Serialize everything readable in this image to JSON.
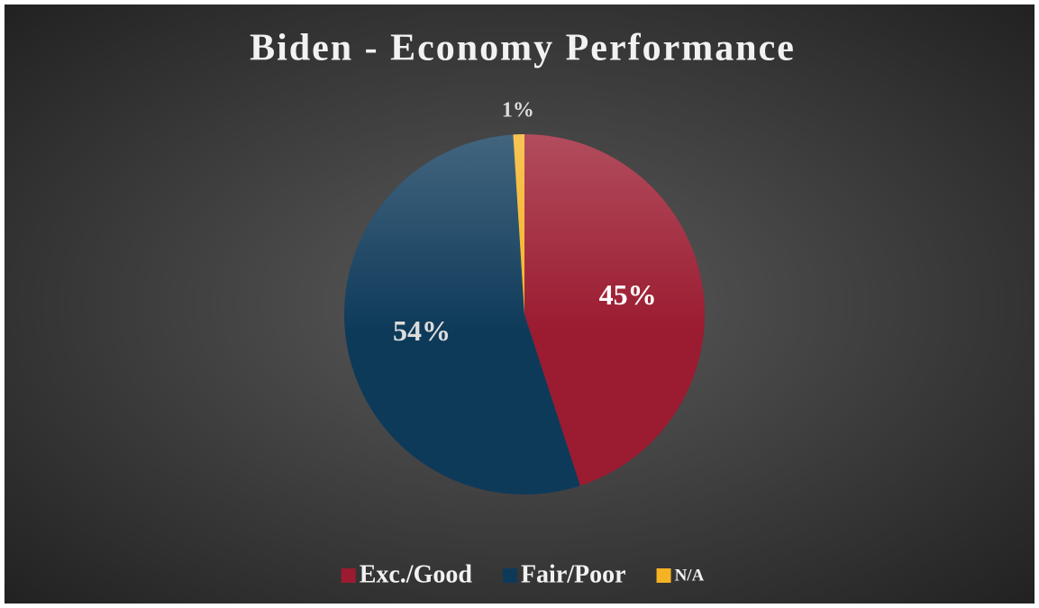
{
  "chart_data": {
    "type": "pie",
    "title": "Biden - Economy Performance",
    "categories": [
      "Exc./Good",
      "Fair/Poor",
      "N/A"
    ],
    "values": [
      45,
      54,
      1
    ],
    "value_labels": [
      "45%",
      "54%",
      "1%"
    ],
    "colors": [
      "#9b1b30",
      "#0e3a5a",
      "#f5b324"
    ],
    "legend": "bottom"
  }
}
